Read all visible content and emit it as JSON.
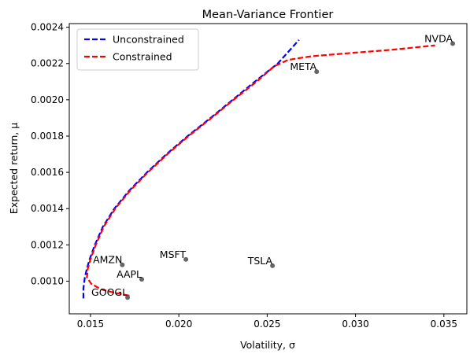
{
  "chart_data": {
    "type": "line",
    "title": "Mean-Variance Frontier",
    "xlabel": "Volatility, σ",
    "ylabel": "Expected return, μ",
    "xlim": [
      0.0138,
      0.0363
    ],
    "ylim": [
      0.00082,
      0.00242
    ],
    "xticks": [
      0.015,
      0.02,
      0.025,
      0.03,
      0.035
    ],
    "xtick_labels": [
      "0.015",
      "0.020",
      "0.025",
      "0.030",
      "0.035"
    ],
    "yticks": [
      0.001,
      0.0012,
      0.0014,
      0.0016,
      0.0018,
      0.002,
      0.0022,
      0.0024
    ],
    "ytick_labels": [
      "0.0010",
      "0.0012",
      "0.0014",
      "0.0016",
      "0.0018",
      "0.0020",
      "0.0022",
      "0.0024"
    ],
    "grid": false,
    "legend_position": "top-left",
    "series": [
      {
        "name": "Unconstrained",
        "color": "#0000ff",
        "style": "dashed",
        "points": [
          [
            0.0146,
            0.000905
          ],
          [
            0.0146,
            0.00096
          ],
          [
            0.01468,
            0.00102
          ],
          [
            0.0148,
            0.00107
          ],
          [
            0.01495,
            0.00112
          ],
          [
            0.01525,
            0.0012
          ],
          [
            0.0157,
            0.0013
          ],
          [
            0.01635,
            0.0014
          ],
          [
            0.0172,
            0.0015
          ],
          [
            0.0182,
            0.0016
          ],
          [
            0.0193,
            0.0017
          ],
          [
            0.0205,
            0.0018
          ],
          [
            0.0218,
            0.0019
          ],
          [
            0.02305,
            0.002
          ],
          [
            0.0243,
            0.0021
          ],
          [
            0.0256,
            0.0022
          ],
          [
            0.0268,
            0.00233
          ]
        ]
      },
      {
        "name": "Constrained",
        "color": "#ff0000",
        "style": "dashed",
        "points": [
          [
            0.0172,
            0.00092
          ],
          [
            0.0164,
            0.000935
          ],
          [
            0.0156,
            0.000955
          ],
          [
            0.01505,
            0.000985
          ],
          [
            0.0148,
            0.00102
          ],
          [
            0.01485,
            0.00107
          ],
          [
            0.015,
            0.00112
          ],
          [
            0.0153,
            0.0012
          ],
          [
            0.01575,
            0.0013
          ],
          [
            0.0164,
            0.0014
          ],
          [
            0.01725,
            0.0015
          ],
          [
            0.01825,
            0.0016
          ],
          [
            0.01935,
            0.0017
          ],
          [
            0.02055,
            0.0018
          ],
          [
            0.02185,
            0.0019
          ],
          [
            0.0231,
            0.002
          ],
          [
            0.0244,
            0.0021
          ],
          [
            0.0254,
            0.002185
          ],
          [
            0.0262,
            0.00222
          ],
          [
            0.0275,
            0.00224
          ],
          [
            0.03,
            0.00226
          ],
          [
            0.032,
            0.002275
          ],
          [
            0.0345,
            0.0023
          ]
        ]
      }
    ],
    "assets": [
      {
        "name": "NVDA",
        "x": 0.0355,
        "y": 0.00231
      },
      {
        "name": "META",
        "x": 0.0278,
        "y": 0.002155
      },
      {
        "name": "AMZN",
        "x": 0.0168,
        "y": 0.00109
      },
      {
        "name": "MSFT",
        "x": 0.0204,
        "y": 0.00112
      },
      {
        "name": "TSLA",
        "x": 0.0253,
        "y": 0.001085
      },
      {
        "name": "AAPL",
        "x": 0.0179,
        "y": 0.00101
      },
      {
        "name": "GOOGL",
        "x": 0.0171,
        "y": 0.00091
      }
    ],
    "asset_color": "#666666"
  }
}
